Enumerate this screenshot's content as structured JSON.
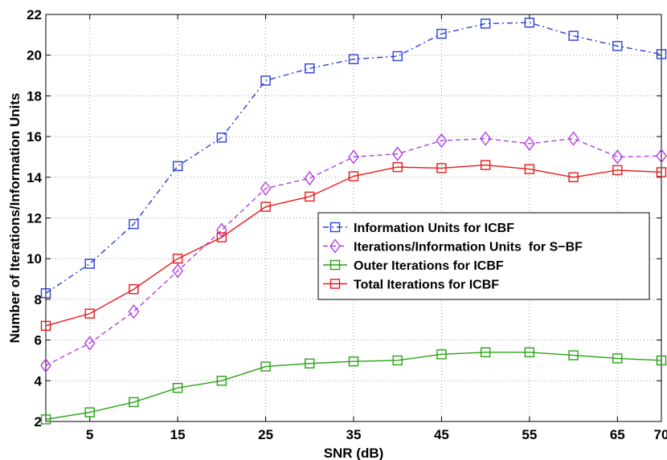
{
  "chart_data": {
    "type": "line",
    "title": "",
    "xlabel": "SNR (dB)",
    "ylabel": "Number of Iterations/Information Units",
    "xlim": [
      0,
      70
    ],
    "ylim": [
      2,
      22
    ],
    "xticks": [
      5,
      15,
      25,
      35,
      45,
      55,
      65,
      70
    ],
    "yticks": [
      2,
      4,
      6,
      8,
      10,
      12,
      14,
      16,
      18,
      20,
      22
    ],
    "grid": true,
    "legend_position": "center-right",
    "x": [
      0,
      5,
      10,
      15,
      20,
      25,
      30,
      35,
      40,
      45,
      50,
      55,
      60,
      65,
      70
    ],
    "series": [
      {
        "name": "Information Units for ICBF",
        "color": "#2b3fd9",
        "line_style": "dash-dot",
        "marker": "square",
        "values": [
          8.3,
          9.75,
          11.7,
          14.55,
          15.95,
          18.75,
          19.35,
          19.8,
          19.95,
          21.05,
          21.55,
          21.6,
          20.95,
          20.45,
          20.05
        ]
      },
      {
        "name": "Iterations/Information Units  for S−BF",
        "color": "#b13fe0",
        "line_style": "dashed",
        "marker": "diamond",
        "values": [
          4.75,
          5.85,
          7.4,
          9.4,
          11.4,
          13.45,
          13.95,
          15.0,
          15.15,
          15.8,
          15.9,
          15.65,
          15.9,
          15.0,
          15.05
        ]
      },
      {
        "name": "Outer Iterations for ICBF",
        "color": "#27a212",
        "line_style": "solid",
        "marker": "square",
        "values": [
          2.1,
          2.45,
          2.95,
          3.65,
          4.0,
          4.7,
          4.85,
          4.95,
          5.0,
          5.3,
          5.4,
          5.4,
          5.25,
          5.1,
          5.0
        ]
      },
      {
        "name": "Total Iterations for ICBF",
        "color": "#e8181a",
        "line_style": "solid",
        "marker": "square",
        "values": [
          6.7,
          7.3,
          8.5,
          10.0,
          11.05,
          12.55,
          13.05,
          14.05,
          14.5,
          14.45,
          14.6,
          14.4,
          14.0,
          14.35,
          14.25
        ]
      }
    ]
  }
}
